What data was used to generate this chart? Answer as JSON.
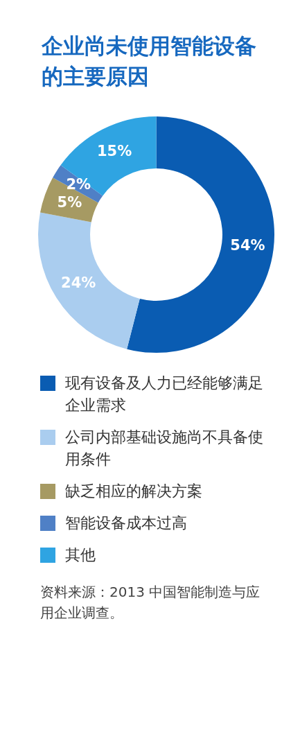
{
  "chart_data": {
    "type": "donut",
    "title": "企业尚未使用智能设备的主要原因",
    "categories": [
      "现有设备及人力已经能够满足企业需求",
      "公司内部基础设施尚不具备使用条件",
      "缺乏相应的解决方案",
      "智能设备成本过高",
      "其他"
    ],
    "values": [
      54,
      24,
      5,
      2,
      15
    ],
    "value_labels": [
      "54%",
      "24%",
      "5%",
      "2%",
      "15%"
    ],
    "colors": [
      "#0a5cb2",
      "#aacdef",
      "#a69a63",
      "#4f80c6",
      "#2fa4e2"
    ],
    "legend": "bottom",
    "annotations": [
      "资料来源：2013 中国智能制造与应用企业调查。"
    ]
  }
}
